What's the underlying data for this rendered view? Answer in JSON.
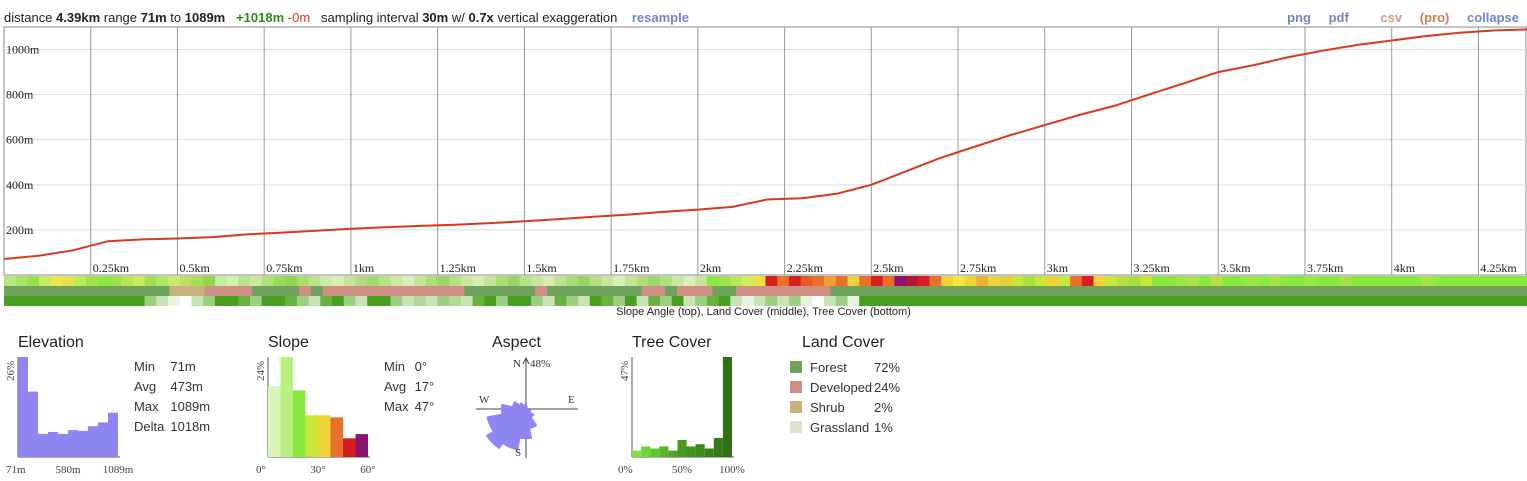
{
  "summary": {
    "distance_label": "distance",
    "distance": "4.39km",
    "range_label": "range",
    "range_min": "71m",
    "to_label": "to",
    "range_max": "1089m",
    "gain": "+1018m",
    "loss": "-0m",
    "sampling_label": "sampling interval",
    "sampling": "30m",
    "w_label": "w/",
    "exaggeration": "0.7x",
    "exaggeration_label": "vertical exaggeration",
    "resample": "resample"
  },
  "links": {
    "png": "png",
    "pdf": "pdf",
    "csv": "csv",
    "pro": "(pro)",
    "collapse": "collapse"
  },
  "colors": {
    "profile": "#d9381e",
    "histogram": "#8f86f2",
    "forest": "#6fa25c",
    "developed": "#d08f85",
    "shrub": "#c7b27a",
    "grassland": "#dfe3cc"
  },
  "caption": "Slope Angle (top), Land Cover (middle), Tree Cover (bottom)",
  "chart_data": [
    {
      "type": "line",
      "name": "elevation-profile",
      "x_unit": "km",
      "y_unit": "m",
      "xlim": [
        0,
        4.39
      ],
      "ylim": [
        0,
        1100
      ],
      "y_ticks": [
        "200m",
        "400m",
        "600m",
        "800m",
        "1000m"
      ],
      "y_tick_values": [
        200,
        400,
        600,
        800,
        1000
      ],
      "x_ticks": [
        "0.25km",
        "0.5km",
        "0.75km",
        "1km",
        "1.25km",
        "1.5km",
        "1.75km",
        "2km",
        "2.25km",
        "2.5km",
        "2.75km",
        "3km",
        "3.25km",
        "3.5km",
        "3.75km",
        "4km",
        "4.25km"
      ],
      "x_tick_values": [
        0.25,
        0.5,
        0.75,
        1.0,
        1.25,
        1.5,
        1.75,
        2.0,
        2.25,
        2.5,
        2.75,
        3.0,
        3.25,
        3.5,
        3.75,
        4.0,
        4.25
      ],
      "grid": true,
      "x": [
        0,
        0.1,
        0.2,
        0.3,
        0.4,
        0.5,
        0.6,
        0.7,
        0.8,
        0.9,
        1.0,
        1.1,
        1.2,
        1.3,
        1.4,
        1.5,
        1.6,
        1.7,
        1.8,
        1.9,
        2.0,
        2.1,
        2.2,
        2.3,
        2.4,
        2.5,
        2.6,
        2.7,
        2.8,
        2.9,
        3.0,
        3.1,
        3.2,
        3.3,
        3.4,
        3.5,
        3.6,
        3.7,
        3.8,
        3.9,
        4.0,
        4.1,
        4.2,
        4.3,
        4.39
      ],
      "y": [
        71,
        85,
        110,
        150,
        158,
        162,
        168,
        180,
        188,
        196,
        205,
        212,
        218,
        223,
        230,
        238,
        248,
        258,
        268,
        280,
        290,
        302,
        335,
        340,
        360,
        400,
        460,
        520,
        570,
        620,
        665,
        710,
        750,
        800,
        850,
        900,
        930,
        965,
        995,
        1020,
        1040,
        1060,
        1075,
        1085,
        1089
      ]
    },
    {
      "type": "bar",
      "name": "Elevation",
      "title": "Elevation",
      "ylabel": "26%",
      "x_tick_labels": [
        "71m",
        "580m",
        "1089m"
      ],
      "values": [
        26,
        17,
        6,
        6.5,
        6,
        7,
        6.8,
        8,
        9,
        11.5
      ],
      "max": 26,
      "stats": {
        "min_label": "Min",
        "min": "71m",
        "avg_label": "Avg",
        "avg": "473m",
        "max_label": "Max",
        "max": "1089m",
        "delta_label": "Delta",
        "delta": "1018m"
      }
    },
    {
      "type": "bar",
      "name": "Slope",
      "title": "Slope",
      "ylabel": "24%",
      "x_tick_labels": [
        "0°",
        "30°",
        "60°"
      ],
      "values": [
        17,
        24,
        16,
        10,
        10,
        9.5,
        4.5,
        5.5
      ],
      "colors": [
        "#d6f5b8",
        "#b8f07e",
        "#8be83f",
        "#c9e63b",
        "#f0d23a",
        "#e8702a",
        "#d42020",
        "#8a1470"
      ],
      "max": 24,
      "stats": {
        "min_label": "Min",
        "min": "0°",
        "avg_label": "Avg",
        "avg": "17°",
        "max_label": "Max",
        "max": "47°"
      }
    },
    {
      "type": "pie",
      "name": "Aspect",
      "title": "Aspect",
      "max_label": "48%",
      "labels": {
        "n": "N",
        "e": "E",
        "s": "S",
        "w": "W"
      },
      "directions": [
        0,
        22.5,
        45,
        67.5,
        90,
        112.5,
        135,
        157.5,
        180,
        202.5,
        225,
        247.5,
        270,
        292.5,
        315,
        337.5
      ],
      "values": [
        4,
        3,
        2,
        2,
        3,
        5,
        10,
        20,
        30,
        42,
        48,
        40,
        25,
        14,
        8,
        5
      ]
    },
    {
      "type": "bar",
      "name": "Tree Cover",
      "title": "Tree Cover",
      "ylabel": "47%",
      "x_tick_labels": [
        "0%",
        "50%",
        "100%"
      ],
      "values": [
        3,
        5,
        4,
        5,
        3,
        8,
        5,
        6,
        4,
        9,
        47
      ],
      "colors": [
        "#7ee63a",
        "#6ed631",
        "#62c52c",
        "#58b628",
        "#4fa524",
        "#489a20",
        "#44921e",
        "#3f8a1c",
        "#3b821a",
        "#377a18",
        "#2f7014"
      ],
      "max": 47
    }
  ],
  "land_cover": {
    "title": "Land Cover",
    "items": [
      {
        "name": "Forest",
        "pct": "72%",
        "color": "#6fa25c"
      },
      {
        "name": "Developed",
        "pct": "24%",
        "color": "#d08f85"
      },
      {
        "name": "Shrub",
        "pct": "2%",
        "color": "#c7b27a"
      },
      {
        "name": "Grassland",
        "pct": "1%",
        "color": "#dfe3cc"
      }
    ]
  },
  "strips": {
    "slope": [
      "#b7ea7f",
      "#a9e36c",
      "#98df4c",
      "#c9e86a",
      "#ece84a",
      "#e6e14a",
      "#bde95e",
      "#a6e04d",
      "#8be83f",
      "#9ddf4a",
      "#b8e45a",
      "#cdea5c",
      "#a0df50",
      "#b3e568",
      "#cbe86f",
      "#bde06b",
      "#a8dd5b",
      "#94d84a",
      "#c6eba0",
      "#d3f0b1",
      "#b8e48b",
      "#cde6a0",
      "#b0e078",
      "#98d95f",
      "#8fd54f",
      "#a8dd66",
      "#bde38a",
      "#cfe9a9",
      "#d9eeb9",
      "#c3e49a",
      "#b0dd83",
      "#a2d86f",
      "#b9e287",
      "#cbe7a0",
      "#dcedbc",
      "#c6e599",
      "#aedd7f",
      "#9ed56b",
      "#b5df84",
      "#cae79d",
      "#d8edb6",
      "#c3e496",
      "#aadc77",
      "#98d662",
      "#b6e089",
      "#c7e69d",
      "#d6ebb3",
      "#c0e290",
      "#a9db77",
      "#97d563",
      "#b2de84",
      "#c9e69f",
      "#dbeec0",
      "#c5e499",
      "#aedc7e",
      "#9ad669",
      "#b4de85",
      "#c8e6a0",
      "#dbeec1",
      "#c6e59a",
      "#8be83f",
      "#9fe34a",
      "#b5e85a",
      "#d3eb5d",
      "#f0e040",
      "#d42020",
      "#e8702a",
      "#d42020",
      "#e6572a",
      "#e8702a",
      "#f0a030",
      "#e8702a",
      "#f0d23a",
      "#e8702a",
      "#d42020",
      "#e8702a",
      "#8a1470",
      "#b01a3a",
      "#d42020",
      "#e8702a",
      "#f0d23a",
      "#ece84a",
      "#f0d23a",
      "#e8b035",
      "#f0d23a",
      "#e0d040",
      "#c9e63b",
      "#a8e040",
      "#c9e63b",
      "#f0d23a",
      "#c9e63b",
      "#e8702a",
      "#d42020",
      "#f0d23a",
      "#c9e63b",
      "#b8e045",
      "#a8dc42",
      "#c9e63b",
      "#8be83f",
      "#8be83f",
      "#9ce448",
      "#a9e24c",
      "#8be83f",
      "#b8e045",
      "#8be83f",
      "#8be83f",
      "#9ee34a",
      "#8be83f",
      "#a6e14c",
      "#8be83f",
      "#8be83f",
      "#9ce448",
      "#8be83f",
      "#8be83f",
      "#a8e04d",
      "#8be83f",
      "#8be83f",
      "#8be83f",
      "#8be83f",
      "#8be83f",
      "#8be83f",
      "#a6e14c",
      "#8be83f",
      "#8be83f",
      "#8be83f",
      "#8be83f",
      "#8be83f",
      "#8be83f",
      "#8be83f",
      "#8be83f"
    ],
    "land": [
      "#6fa25c",
      "#6fa25c",
      "#6fa25c",
      "#6fa25c",
      "#6fa25c",
      "#6fa25c",
      "#6fa25c",
      "#6fa25c",
      "#6fa25c",
      "#6fa25c",
      "#6fa25c",
      "#6fa25c",
      "#6fa25c",
      "#6fa25c",
      "#c7b27a",
      "#c7b27a",
      "#c7b27a",
      "#d08f85",
      "#d08f85",
      "#d08f85",
      "#d08f85",
      "#6fa25c",
      "#6fa25c",
      "#6fa25c",
      "#6fa25c",
      "#d08f85",
      "#6fa25c",
      "#d08f85",
      "#d08f85",
      "#d08f85",
      "#d08f85",
      "#d08f85",
      "#d08f85",
      "#d08f85",
      "#d08f85",
      "#d08f85",
      "#d08f85",
      "#d08f85",
      "#d08f85",
      "#6fa25c",
      "#6fa25c",
      "#6fa25c",
      "#6fa25c",
      "#6fa25c",
      "#6fa25c",
      "#d08f85",
      "#6fa25c",
      "#6fa25c",
      "#6fa25c",
      "#6fa25c",
      "#6fa25c",
      "#6fa25c",
      "#6fa25c",
      "#6fa25c",
      "#d08f85",
      "#d08f85",
      "#6fa25c",
      "#d08f85",
      "#d08f85",
      "#d08f85",
      "#6fa25c",
      "#6fa25c",
      "#d08f85",
      "#d08f85",
      "#d08f85",
      "#d08f85",
      "#d08f85",
      "#d08f85",
      "#d08f85",
      "#d08f85",
      "#6fa25c",
      "#6fa25c",
      "#6fa25c",
      "#6fa25c",
      "#6fa25c",
      "#6fa25c",
      "#6fa25c",
      "#6fa25c",
      "#6fa25c",
      "#6fa25c",
      "#6fa25c",
      "#6fa25c",
      "#6fa25c",
      "#6fa25c",
      "#6fa25c",
      "#6fa25c",
      "#6fa25c",
      "#6fa25c",
      "#6fa25c",
      "#6fa25c",
      "#6fa25c",
      "#6fa25c",
      "#6fa25c",
      "#6fa25c",
      "#6fa25c",
      "#6fa25c",
      "#6fa25c",
      "#6fa25c",
      "#6fa25c",
      "#6fa25c",
      "#6fa25c",
      "#6fa25c",
      "#6fa25c",
      "#6fa25c",
      "#6fa25c",
      "#6fa25c",
      "#6fa25c",
      "#6fa25c",
      "#6fa25c",
      "#6fa25c",
      "#6fa25c",
      "#6fa25c",
      "#6fa25c",
      "#6fa25c",
      "#6fa25c",
      "#6fa25c",
      "#6fa25c",
      "#6fa25c",
      "#6fa25c",
      "#6fa25c",
      "#6fa25c",
      "#6fa25c",
      "#6fa25c",
      "#6fa25c",
      "#6fa25c",
      "#6fa25c",
      "#6fa25c",
      "#6fa25c",
      "#6fa25c"
    ],
    "tree": [
      "#48a020",
      "#48a020",
      "#48a020",
      "#48a020",
      "#48a020",
      "#48a020",
      "#48a020",
      "#48a020",
      "#48a020",
      "#48a020",
      "#48a020",
      "#48a020",
      "#9ccf80",
      "#c8e4b4",
      "#e8f3e0",
      "#ffffff",
      "#c8e4b4",
      "#9ccf80",
      "#48a020",
      "#48a020",
      "#68b23e",
      "#9ccf80",
      "#48a020",
      "#48a020",
      "#68b23e",
      "#9ccf80",
      "#c8e4b4",
      "#68b23e",
      "#48a020",
      "#9ccf80",
      "#c8e4b4",
      "#48a020",
      "#48a020",
      "#9ccf80",
      "#c8e4b4",
      "#b0d898",
      "#c8e4b4",
      "#9ccf80",
      "#b0d898",
      "#c8e4b4",
      "#68b23e",
      "#48a020",
      "#9ccf80",
      "#48a020",
      "#48a020",
      "#9ccf80",
      "#c8e4b4",
      "#68b23e",
      "#9ccf80",
      "#c8e4b4",
      "#48a020",
      "#68b23e",
      "#9ccf80",
      "#48a020",
      "#c8e4b4",
      "#68b23e",
      "#9ccf80",
      "#48a020",
      "#c8e4b4",
      "#9ccf80",
      "#68b23e",
      "#48a020",
      "#c8e4b4",
      "#e8f3e0",
      "#c8e4b4",
      "#9ccf80",
      "#c8e4b4",
      "#9ccf80",
      "#e8f3e0",
      "#ffffff",
      "#c8e4b4",
      "#9ccf80",
      "#e8f3e0",
      "#48a020",
      "#48a020",
      "#48a020",
      "#48a020",
      "#48a020",
      "#48a020",
      "#48a020",
      "#48a020",
      "#48a020",
      "#48a020",
      "#48a020",
      "#48a020",
      "#48a020",
      "#48a020",
      "#48a020",
      "#48a020",
      "#48a020",
      "#48a020",
      "#48a020",
      "#48a020",
      "#48a020",
      "#48a020",
      "#48a020",
      "#48a020",
      "#48a020",
      "#48a020",
      "#48a020",
      "#48a020",
      "#48a020",
      "#48a020",
      "#48a020",
      "#48a020",
      "#48a020",
      "#48a020",
      "#48a020",
      "#48a020",
      "#48a020",
      "#48a020",
      "#48a020",
      "#48a020",
      "#48a020",
      "#48a020",
      "#48a020",
      "#48a020",
      "#48a020",
      "#48a020",
      "#48a020",
      "#48a020",
      "#48a020",
      "#48a020",
      "#48a020",
      "#48a020",
      "#48a020",
      "#48a020",
      "#48a020",
      "#48a020",
      "#48a020"
    ]
  }
}
